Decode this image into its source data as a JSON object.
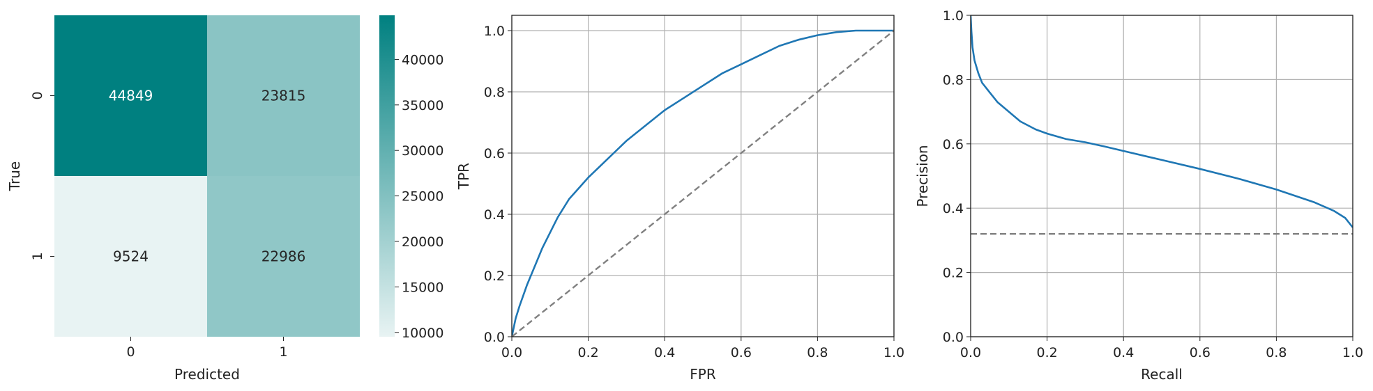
{
  "chart_data": [
    {
      "type": "heatmap",
      "xlabel": "Predicted",
      "ylabel": "True",
      "x_tick_labels": [
        "0",
        "1"
      ],
      "y_tick_labels": [
        "0",
        "1"
      ],
      "values": [
        [
          44849,
          23815
        ],
        [
          9524,
          22986
        ]
      ],
      "colorbar": {
        "vmin": 9524,
        "vmax": 44849,
        "ticks": [
          10000,
          15000,
          20000,
          25000,
          30000,
          35000,
          40000
        ],
        "colors": [
          "#e8f3f3",
          "#008080"
        ]
      }
    },
    {
      "type": "line",
      "xlabel": "FPR",
      "ylabel": "TPR",
      "xlim": [
        0,
        1
      ],
      "ylim": [
        0,
        1.05
      ],
      "x_ticks": [
        0.0,
        0.2,
        0.4,
        0.6,
        0.8,
        1.0
      ],
      "y_ticks": [
        0.0,
        0.2,
        0.4,
        0.6,
        0.8,
        1.0
      ],
      "grid": true,
      "series": [
        {
          "style": "solid",
          "color": "#1f77b4",
          "x": [
            0,
            0.01,
            0.02,
            0.04,
            0.06,
            0.08,
            0.1,
            0.12,
            0.15,
            0.2,
            0.25,
            0.3,
            0.35,
            0.4,
            0.45,
            0.5,
            0.55,
            0.6,
            0.65,
            0.7,
            0.75,
            0.8,
            0.85,
            0.9,
            0.95,
            1.0
          ],
          "y": [
            0,
            0.06,
            0.1,
            0.17,
            0.23,
            0.29,
            0.34,
            0.39,
            0.45,
            0.52,
            0.58,
            0.64,
            0.69,
            0.74,
            0.78,
            0.82,
            0.86,
            0.89,
            0.92,
            0.95,
            0.97,
            0.985,
            0.995,
            1.0,
            1.0,
            1.0
          ]
        },
        {
          "style": "dashed",
          "color": "#808080",
          "x": [
            0,
            1
          ],
          "y": [
            0,
            1
          ]
        }
      ]
    },
    {
      "type": "line",
      "xlabel": "Recall",
      "ylabel": "Precision",
      "xlim": [
        0,
        1
      ],
      "ylim": [
        0,
        1
      ],
      "x_ticks": [
        0.0,
        0.2,
        0.4,
        0.6,
        0.8,
        1.0
      ],
      "y_ticks": [
        0.0,
        0.2,
        0.4,
        0.6,
        0.8,
        1.0
      ],
      "grid": true,
      "series": [
        {
          "style": "solid",
          "color": "#1f77b4",
          "x": [
            0,
            0.002,
            0.005,
            0.01,
            0.02,
            0.03,
            0.05,
            0.07,
            0.1,
            0.13,
            0.17,
            0.2,
            0.25,
            0.3,
            0.35,
            0.4,
            0.5,
            0.6,
            0.7,
            0.8,
            0.9,
            0.95,
            0.98,
            1.0
          ],
          "y": [
            1.0,
            0.95,
            0.9,
            0.86,
            0.82,
            0.79,
            0.76,
            0.73,
            0.7,
            0.67,
            0.645,
            0.632,
            0.615,
            0.605,
            0.592,
            0.578,
            0.55,
            0.522,
            0.492,
            0.458,
            0.418,
            0.392,
            0.37,
            0.34
          ]
        },
        {
          "style": "dashed",
          "color": "#808080",
          "x": [
            0,
            1
          ],
          "y": [
            0.32,
            0.32
          ]
        }
      ]
    }
  ]
}
